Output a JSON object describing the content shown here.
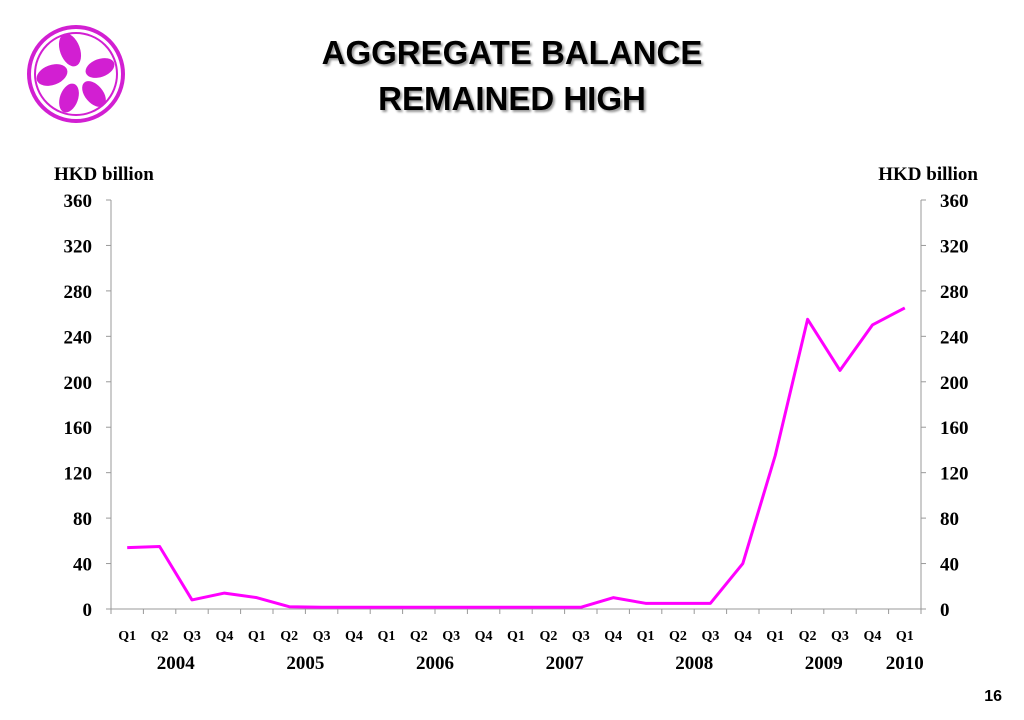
{
  "page_number": "16",
  "chart_data": {
    "type": "line",
    "title": "AGGREGATE BALANCE REMAINED HIGH",
    "y_label": "HKD billion",
    "y2_label": "HKD billion",
    "categories": [
      "Q1",
      "Q2",
      "Q3",
      "Q4",
      "Q1",
      "Q2",
      "Q3",
      "Q4",
      "Q1",
      "Q2",
      "Q3",
      "Q4",
      "Q1",
      "Q2",
      "Q3",
      "Q4",
      "Q1",
      "Q2",
      "Q3",
      "Q4",
      "Q1",
      "Q2",
      "Q3",
      "Q4",
      "Q1"
    ],
    "years": [
      {
        "label": "2004",
        "quarters": 4
      },
      {
        "label": "2005",
        "quarters": 4
      },
      {
        "label": "2006",
        "quarters": 4
      },
      {
        "label": "2007",
        "quarters": 4
      },
      {
        "label": "2008",
        "quarters": 4
      },
      {
        "label": "2009",
        "quarters": 4
      },
      {
        "label": "2010",
        "quarters": 1
      }
    ],
    "series": [
      {
        "name": "Aggregate Balance",
        "color": "#ff00ff",
        "values": [
          54,
          55,
          8,
          14,
          10,
          2,
          1.5,
          1.5,
          1.5,
          1.5,
          1.5,
          1.5,
          1.5,
          1.5,
          1.5,
          10,
          5,
          5,
          5,
          40,
          135,
          255,
          210,
          250,
          265
        ]
      }
    ],
    "ylim": [
      0,
      360
    ],
    "yticks": [
      0,
      40,
      80,
      120,
      160,
      200,
      240,
      280,
      320,
      360
    ],
    "y2lim": [
      0,
      360
    ],
    "y2ticks": [
      0,
      40,
      80,
      120,
      160,
      200,
      240,
      280,
      320,
      360
    ]
  }
}
